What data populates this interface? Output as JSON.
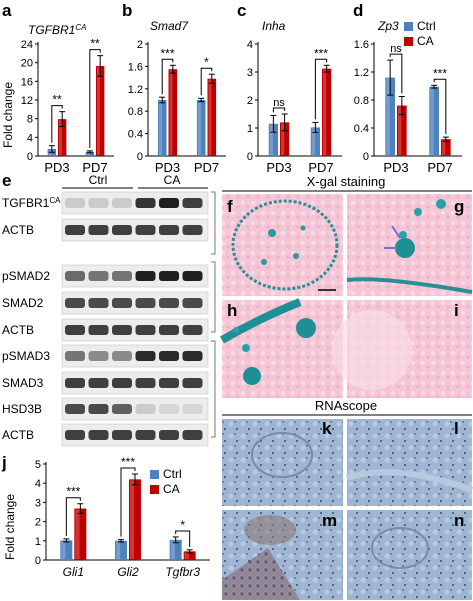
{
  "colors": {
    "ctrl": "#4f81bd",
    "ca": "#c00000",
    "ctrl_light": "#93b4d9",
    "ca_light": "#e06060"
  },
  "panels": {
    "a": {
      "letter": "a",
      "title": "TGFBR1",
      "title_sup": "CA",
      "ylabel": "Fold change"
    },
    "b": {
      "letter": "b",
      "title": "Smad7"
    },
    "c": {
      "letter": "c",
      "title": "Inha"
    },
    "d": {
      "letter": "d",
      "title": "Zp3"
    },
    "e": {
      "letter": "e",
      "col_ctrl": "Ctrl",
      "col_ca": "CA",
      "rows": [
        {
          "label": "TGFBR1",
          "sup": "CA"
        },
        {
          "label": "ACTB"
        },
        {
          "label": "pSMAD2"
        },
        {
          "label": "SMAD2"
        },
        {
          "label": "ACTB"
        },
        {
          "label": "pSMAD3"
        },
        {
          "label": "SMAD3"
        },
        {
          "label": "HSD3B"
        },
        {
          "label": "ACTB"
        }
      ]
    },
    "xgal": {
      "header": "X-gal staining",
      "letters": [
        "f",
        "g",
        "h",
        "i"
      ]
    },
    "rnascope": {
      "header": "RNAscope",
      "letters": [
        "k",
        "l",
        "m",
        "n"
      ]
    },
    "j": {
      "letter": "j",
      "ylabel": "Fold change"
    }
  },
  "chart_data": [
    {
      "panel": "a",
      "type": "bar",
      "categories": [
        "PD3",
        "PD7"
      ],
      "series": [
        {
          "name": "Ctrl",
          "values": [
            1.5,
            0.9
          ],
          "err": [
            0.7,
            0.2
          ]
        },
        {
          "name": "CA",
          "values": [
            7.9,
            19.3
          ],
          "err": [
            1.6,
            2.2
          ]
        }
      ],
      "ylim": [
        0,
        24
      ],
      "yticks": [
        0,
        4,
        8,
        12,
        16,
        20,
        24
      ],
      "significance": [
        "**",
        "**"
      ]
    },
    {
      "panel": "b",
      "type": "bar",
      "categories": [
        "PD3",
        "PD7"
      ],
      "series": [
        {
          "name": "Ctrl",
          "values": [
            1.0,
            1.0
          ],
          "err": [
            0.05,
            0.03
          ]
        },
        {
          "name": "CA",
          "values": [
            1.55,
            1.38
          ],
          "err": [
            0.07,
            0.08
          ]
        }
      ],
      "ylim": [
        0,
        2
      ],
      "yticks": [
        0,
        0.4,
        0.8,
        1.2,
        1.6,
        2
      ],
      "ytick_labels": [
        "0",
        "0.4",
        "0.8",
        "1.2",
        "1.6",
        "2"
      ],
      "significance": [
        "***",
        "*"
      ]
    },
    {
      "panel": "c",
      "type": "bar",
      "categories": [
        "PD3",
        "PD7"
      ],
      "series": [
        {
          "name": "Ctrl",
          "values": [
            1.15,
            1.02
          ],
          "err": [
            0.3,
            0.18
          ]
        },
        {
          "name": "CA",
          "values": [
            1.2,
            3.12
          ],
          "err": [
            0.3,
            0.12
          ]
        }
      ],
      "ylim": [
        0,
        4
      ],
      "yticks": [
        0,
        1,
        2,
        3,
        4
      ],
      "significance": [
        "ns",
        "***"
      ]
    },
    {
      "panel": "d",
      "type": "bar",
      "categories": [
        "PD3",
        "PD7"
      ],
      "series": [
        {
          "name": "Ctrl",
          "values": [
            1.12,
            0.99
          ],
          "err": [
            0.25,
            0.02
          ]
        },
        {
          "name": "CA",
          "values": [
            0.72,
            0.24
          ],
          "err": [
            0.13,
            0.03
          ]
        }
      ],
      "ylim": [
        0,
        1.6
      ],
      "yticks": [
        0,
        0.4,
        0.8,
        1.2,
        1.6
      ],
      "ytick_labels": [
        "0",
        "0.4",
        "0.8",
        "1.2",
        "1.6"
      ],
      "significance": [
        "ns",
        "***"
      ],
      "legend": [
        {
          "name": "Ctrl"
        },
        {
          "name": "CA"
        }
      ]
    },
    {
      "panel": "j",
      "type": "bar",
      "categories": [
        "Gli1",
        "Gli2",
        "Tgfbr3"
      ],
      "series": [
        {
          "name": "Ctrl",
          "values": [
            1.02,
            1.0,
            1.05
          ],
          "err": [
            0.08,
            0.06,
            0.15
          ]
        },
        {
          "name": "CA",
          "values": [
            2.68,
            4.2,
            0.45
          ],
          "err": [
            0.25,
            0.28,
            0.08
          ]
        }
      ],
      "ylim": [
        0,
        5
      ],
      "yticks": [
        0,
        1,
        2,
        3,
        4,
        5
      ],
      "significance": [
        "***",
        "***",
        "*"
      ],
      "legend": [
        {
          "name": "Ctrl"
        },
        {
          "name": "CA"
        }
      ]
    }
  ]
}
